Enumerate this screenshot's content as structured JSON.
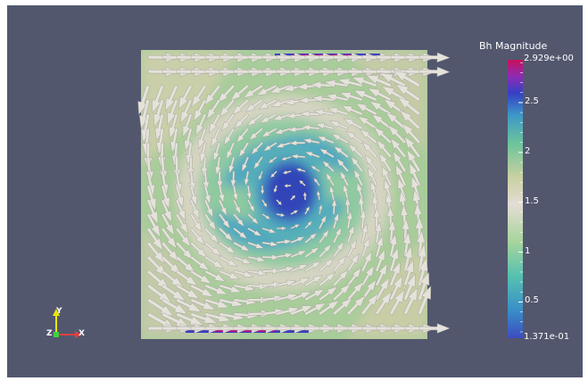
{
  "colorbar": {
    "title": "Bh Magnitude",
    "max_label": "2.929e+00",
    "min_label": "1.371e-01",
    "tick_labels": [
      {
        "value": 2.5,
        "text": "2.5"
      },
      {
        "value": 2.0,
        "text": "2"
      },
      {
        "value": 1.5,
        "text": "1.5"
      },
      {
        "value": 1.0,
        "text": "1"
      },
      {
        "value": 0.5,
        "text": "0.5"
      }
    ],
    "range": [
      0.1371,
      2.929
    ],
    "colors": [
      "#3b4cc0",
      "#39a3c4",
      "#6dc39b",
      "#c6d6a4",
      "#e2dcd2",
      "#b6c088",
      "#3fa8c0",
      "#3947c9",
      "#8a2cb0",
      "#c0145a"
    ]
  },
  "orientation_axes": {
    "y": "Y",
    "z": "Z",
    "x": "X",
    "y_color": "#e8e800",
    "x_color": "#e04040",
    "z_color": "#40d040"
  },
  "background_color": "#52576e"
}
